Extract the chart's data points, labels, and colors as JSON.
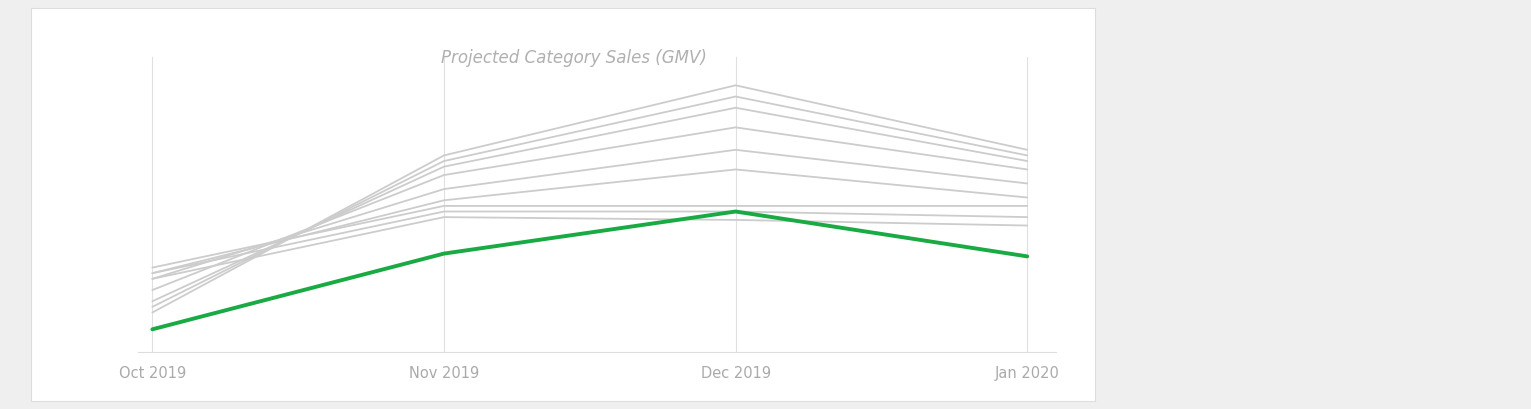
{
  "title": "Projected Category Sales (GMV)",
  "title_color": "#b0b0b0",
  "title_fontsize": 12,
  "title_style": "italic",
  "x_labels": [
    "Oct 2019",
    "Nov 2019",
    "Dec 2019",
    "Jan 2020"
  ],
  "x_positions": [
    0,
    1,
    2,
    3
  ],
  "outer_bg": "#efefef",
  "chart_bg_color": "#ffffff",
  "tick_color": "#aaaaaa",
  "tick_fontsize": 10.5,
  "green_line": {
    "color": "#1aaa44",
    "linewidth": 2.8,
    "values": [
      0.08,
      0.35,
      0.5,
      0.34
    ]
  },
  "gray_lines": [
    {
      "values": [
        0.3,
        0.52,
        0.52,
        0.52
      ],
      "linewidth": 1.3
    },
    {
      "values": [
        0.28,
        0.5,
        0.5,
        0.48
      ],
      "linewidth": 1.3
    },
    {
      "values": [
        0.26,
        0.48,
        0.47,
        0.45
      ],
      "linewidth": 1.3
    },
    {
      "values": [
        0.28,
        0.54,
        0.65,
        0.55
      ],
      "linewidth": 1.3
    },
    {
      "values": [
        0.26,
        0.58,
        0.72,
        0.6
      ],
      "linewidth": 1.3
    },
    {
      "values": [
        0.22,
        0.63,
        0.8,
        0.65
      ],
      "linewidth": 1.3
    },
    {
      "values": [
        0.18,
        0.66,
        0.87,
        0.68
      ],
      "linewidth": 1.3
    },
    {
      "values": [
        0.16,
        0.68,
        0.91,
        0.7
      ],
      "linewidth": 1.3
    },
    {
      "values": [
        0.14,
        0.7,
        0.95,
        0.72
      ],
      "linewidth": 1.3
    }
  ],
  "gray_color": "#cccccc",
  "ylim": [
    0,
    1.05
  ],
  "xlim": [
    -0.05,
    3.1
  ]
}
